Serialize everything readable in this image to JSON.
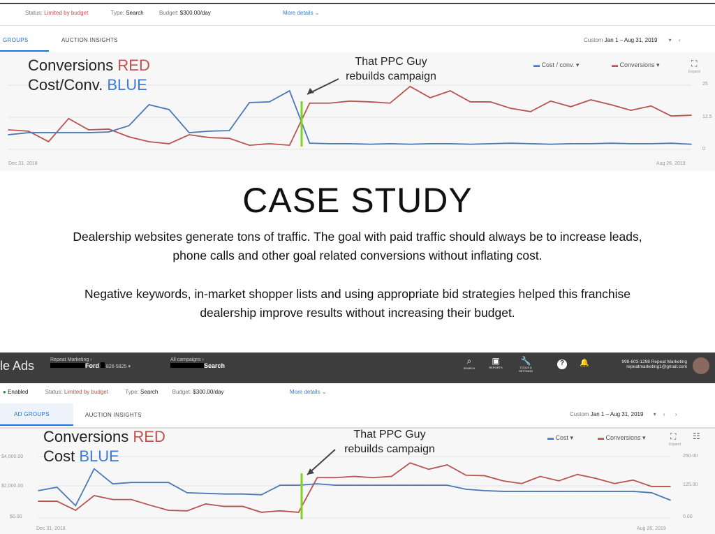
{
  "top_panel": {
    "status_label": "Status:",
    "status_value": "Limited by budget",
    "type_label": "Type:",
    "type_value": "Search",
    "budget_label": "Budget:",
    "budget_value": "$300.00/day",
    "more_details": "More details",
    "tabs": [
      "GROUPS",
      "AUCTION INSIGHTS"
    ],
    "date_label": "Custom",
    "date_range": "Jan 1 – Aug 31, 2019",
    "legend": [
      "Cost / conv.",
      "Conversions"
    ],
    "expand_label": "Expand",
    "annotation_line1_prefix": "Conversions ",
    "annotation_line1_color": "RED",
    "annotation_line2_prefix": "Cost/Conv. ",
    "annotation_line2_color": "BLUE",
    "ppc_line1": "That PPC Guy",
    "ppc_line2": "rebuilds campaign",
    "x_start": "Dec 31, 2018",
    "x_end": "Aug 26, 2019",
    "right_ticks": [
      "25",
      "12.5",
      "0"
    ]
  },
  "case_study": {
    "title": "CASE STUDY",
    "para1_line1": "Dealership websites generate tons of traffic. The goal with paid traffic should always be to increase leads,",
    "para1_line2": "phone calls and other goal related conversions without inflating cost.",
    "para2_line1": "Negative keywords, in-market shopper lists and using appropriate bid strategies helped this franchise",
    "para2_line2": "dealership improve results without increasing their budget."
  },
  "bottom_panel": {
    "app_name": "le Ads",
    "account_label": "Repeat Marketing",
    "account_name": "Ford",
    "account_phone": "826-5825",
    "campaign_label": "All campaigns",
    "campaign_name": "Search",
    "nav_icons": [
      "SEARCH",
      "REPORTS",
      "TOOLS & SETTINGS"
    ],
    "user_line1": "998-603-1298 Repeat Marketing",
    "user_line2": "repeatmarketing1@gmail.com",
    "enabled": "Enabled",
    "status_label": "Status:",
    "status_value": "Limited by budget",
    "type_label": "Type:",
    "type_value": "Search",
    "budget_label": "Budget:",
    "budget_value": "$300.00/day",
    "more_details": "More details",
    "tabs": [
      "AD GROUPS",
      "AUCTION INSIGHTS"
    ],
    "date_label": "Custom",
    "date_range": "Jan 1 – Aug 31, 2019",
    "legend": [
      "Cost",
      "Conversions"
    ],
    "expand_label": "Expand",
    "annotation_line1_prefix": "Conversions ",
    "annotation_line1_color": "RED",
    "annotation_line2_prefix": "Cost ",
    "annotation_line2_color": "BLUE",
    "ppc_line1": "That PPC Guy",
    "ppc_line2": "rebuilds campaign",
    "left_ticks": [
      "$4,000.00",
      "$2,000.00",
      "$0.00"
    ],
    "right_ticks": [
      "250.00",
      "125.00",
      "0.00"
    ],
    "x_start": "Dec 31, 2018",
    "x_end": "Aug 26, 2019"
  },
  "colors": {
    "conversions": "#b85450",
    "cost": "#4a78b5",
    "marker": "#7ed321",
    "header": "#3d3d3d",
    "accent": "#1a73e8"
  },
  "chart_data": [
    {
      "type": "line",
      "xlabel": "",
      "ylabel": "",
      "x_range": [
        "Dec 31, 2018",
        "Aug 26, 2019"
      ],
      "ylim_right": [
        0,
        25
      ],
      "grid": true,
      "legend": "top-right",
      "series": [
        {
          "name": "Conversions",
          "axis": "right",
          "values": [
            7.6,
            7.1,
            3.0,
            12.0,
            7.6,
            7.9,
            4.9,
            3.0,
            2.2,
            5.7,
            4.6,
            4.3,
            1.6,
            2.2,
            1.6,
            18.0,
            18.0,
            18.8,
            18.5,
            18.0,
            24.5,
            20.1,
            22.8,
            18.5,
            18.5,
            16.0,
            14.7,
            18.8,
            16.6,
            19.3,
            17.4,
            15.2,
            16.9,
            13.0,
            13.3
          ]
        },
        {
          "name": "Cost / conv.",
          "axis": "left",
          "values": [
            5.7,
            6.5,
            6.5,
            6.5,
            6.5,
            6.8,
            9.2,
            17.4,
            15.5,
            6.5,
            7.1,
            7.3,
            18.2,
            18.5,
            22.8,
            2.4,
            2.2,
            2.2,
            2.0,
            2.2,
            2.0,
            2.2,
            2.2,
            2.0,
            2.2,
            2.4,
            2.2,
            2.0,
            2.2,
            2.2,
            2.4,
            2.2,
            2.2,
            2.4,
            2.0
          ]
        }
      ]
    },
    {
      "type": "line",
      "xlabel": "",
      "ylabel": "",
      "x_range": [
        "Dec 31, 2018",
        "Aug 26, 2019"
      ],
      "ylim_left": [
        0,
        4000
      ],
      "ylim_right": [
        0,
        250
      ],
      "grid": true,
      "legend": "top-right",
      "series": [
        {
          "name": "Conversions",
          "axis": "right",
          "values": [
            68,
            68,
            31,
            91,
            75,
            75,
            52,
            31,
            29,
            57,
            47,
            47,
            23,
            29,
            23,
            164,
            164,
            169,
            164,
            169,
            224,
            198,
            216,
            174,
            172,
            151,
            140,
            169,
            151,
            177,
            161,
            140,
            154,
            128,
            128
          ]
        },
        {
          "name": "Cost",
          "axis": "left",
          "values": [
            1780,
            2000,
            800,
            3200,
            2220,
            2310,
            2310,
            2310,
            1640,
            1600,
            1560,
            1560,
            1510,
            2130,
            2130,
            2220,
            2130,
            2130,
            2130,
            2130,
            2130,
            2130,
            2130,
            1870,
            1780,
            1730,
            1730,
            1730,
            1730,
            1730,
            1730,
            1730,
            1730,
            1640,
            1160
          ]
        }
      ]
    }
  ]
}
